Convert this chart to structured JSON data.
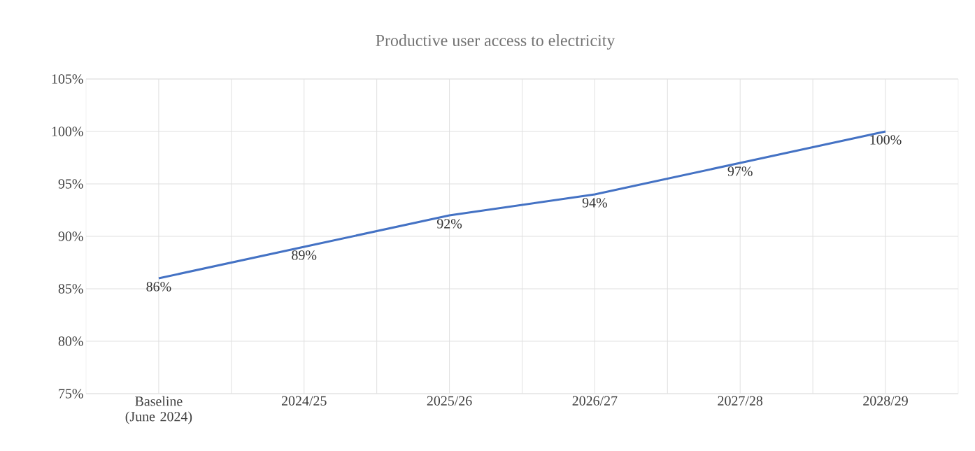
{
  "chart_data": {
    "type": "line",
    "title": "Productive user access to electricity",
    "categories": [
      "Baseline (June 2024)",
      "2024/25",
      "2025/26",
      "2026/27",
      "2027/28",
      "2028/29"
    ],
    "values": [
      86,
      89,
      92,
      94,
      97,
      100
    ],
    "value_labels": [
      "86%",
      "89%",
      "92%",
      "94%",
      "97%",
      "100%"
    ],
    "color": "#4472c4",
    "ylim": [
      75,
      105
    ],
    "yticks": [
      {
        "value": 75,
        "label": "75%"
      },
      {
        "value": 80,
        "label": "80%"
      },
      {
        "value": 85,
        "label": "85%"
      },
      {
        "value": 90,
        "label": "90%"
      },
      {
        "value": 95,
        "label": "95%"
      },
      {
        "value": 100,
        "label": "100%"
      },
      {
        "value": 105,
        "label": "105%"
      }
    ],
    "grid": true
  }
}
